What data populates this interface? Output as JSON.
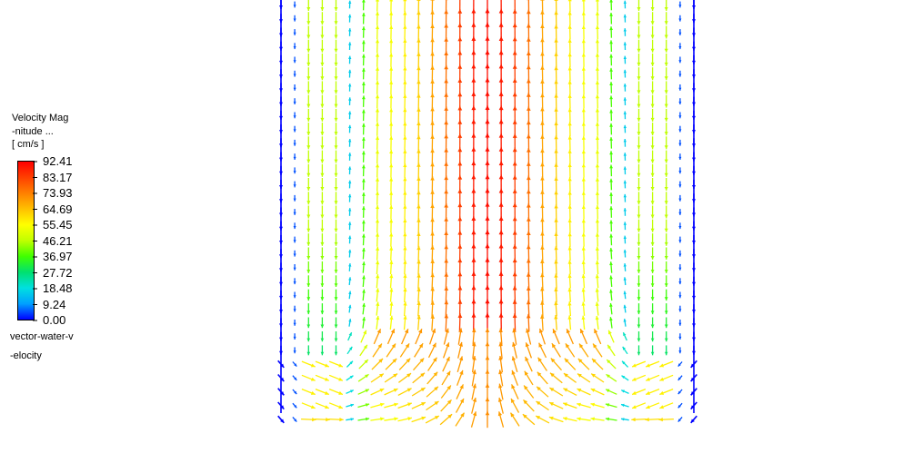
{
  "legend": {
    "title_line1": "Velocity Mag",
    "title_line2": "-nitude ...",
    "title_line3": "[ cm/s ]",
    "ticks": [
      "92.41",
      "83.17",
      "73.93",
      "64.69",
      "55.45",
      "46.21",
      "36.97",
      "27.72",
      "18.48",
      "9.24",
      "0.00"
    ],
    "caption_line1": "vector-water-v",
    "caption_line2": "-elocity",
    "colormap": [
      "#0000ff",
      "#00a0ff",
      "#00e0e0",
      "#00e070",
      "#40ff00",
      "#c0ff00",
      "#ffff00",
      "#ffc000",
      "#ff8000",
      "#ff4000",
      "#ff0000"
    ]
  },
  "chart_data": {
    "type": "vector field",
    "title": "",
    "colorbar_label": "Velocity Magnitude ... [ cm/s ]",
    "colorbar_range": [
      0.0,
      92.41
    ],
    "field": "vector-water-velocity"
  }
}
